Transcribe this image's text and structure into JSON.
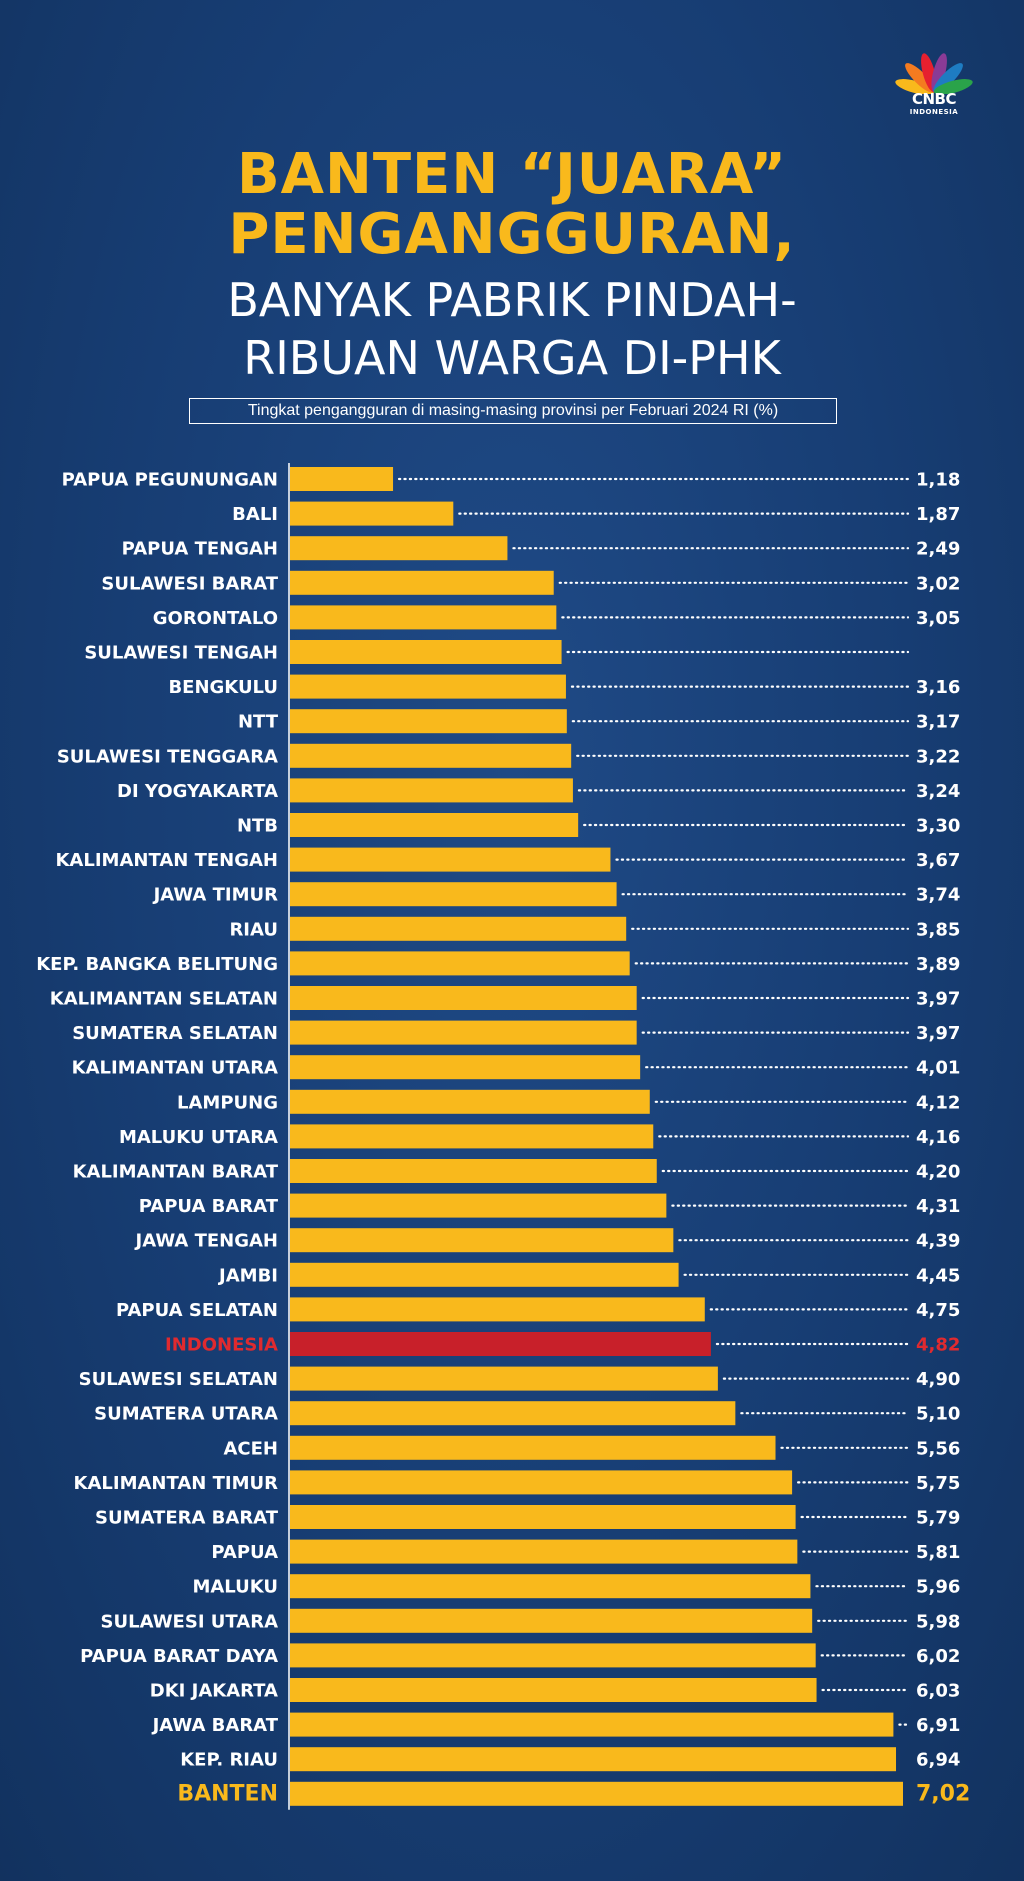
{
  "header": {
    "title_line1": "BANTEN “JUARA”",
    "title_line2": "PENGANGGURAN,",
    "subtitle_line1": "BANYAK PABRIK PINDAH-",
    "subtitle_line2": "RIBUAN WARGA DI-PHK",
    "caption": "Tingkat pengangguran di masing-masing provinsi per Februari 2024 RI (%)"
  },
  "logo": {
    "text": "CNBC",
    "subtext": "INDONESIA"
  },
  "colors": {
    "bar": "#f9b91c",
    "highlight_bar": "#c8202a",
    "highlight_text": "#e02a2f",
    "label": "#ffffff",
    "top_label": "#f9b91c",
    "dots": "#ffffff"
  },
  "chart_data": {
    "type": "bar",
    "orientation": "horizontal",
    "xlim": [
      0,
      7.02
    ],
    "categories": [
      "PAPUA PEGUNUNGAN",
      "BALI",
      "PAPUA TENGAH",
      "SULAWESI BARAT",
      "GORONTALO",
      "SULAWESI TENGAH",
      "BENGKULU",
      "NTT",
      "SULAWESI TENGGARA",
      "DI YOGYAKARTA",
      "NTB",
      "KALIMANTAN TENGAH",
      "JAWA TIMUR",
      "RIAU",
      "KEP. BANGKA BELITUNG",
      "KALIMANTAN SELATAN",
      "SUMATERA SELATAN",
      "KALIMANTAN UTARA",
      "LAMPUNG",
      "MALUKU UTARA",
      "KALIMANTAN BARAT",
      "PAPUA BARAT",
      "JAWA TENGAH",
      "JAMBI",
      "PAPUA SELATAN",
      "INDONESIA",
      "SULAWESI SELATAN",
      "SUMATERA UTARA",
      "ACEH",
      "KALIMANTAN TIMUR",
      "SUMATERA BARAT",
      "PAPUA",
      "MALUKU",
      "SULAWESI UTARA",
      "PAPUA BARAT DAYA",
      "DKI JAKARTA",
      "JAWA BARAT",
      "KEP. RIAU",
      "BANTEN"
    ],
    "values": [
      1.18,
      1.87,
      2.49,
      3.02,
      3.05,
      3.11,
      3.16,
      3.17,
      3.22,
      3.24,
      3.3,
      3.67,
      3.74,
      3.85,
      3.89,
      3.97,
      3.97,
      4.01,
      4.12,
      4.16,
      4.2,
      4.31,
      4.39,
      4.45,
      4.75,
      4.82,
      4.9,
      5.1,
      5.56,
      5.75,
      5.79,
      5.81,
      5.96,
      5.98,
      6.02,
      6.03,
      6.91,
      6.94,
      7.02
    ],
    "value_labels": [
      "1,18",
      "1,87",
      "2,49",
      "3,02",
      "3,05",
      "",
      "3,16",
      "3,17",
      "3,22",
      "3,24",
      "3,30",
      "3,67",
      "3,74",
      "3,85",
      "3,89",
      "3,97",
      "3,97",
      "4,01",
      "4,12",
      "4,16",
      "4,20",
      "4,31",
      "4,39",
      "4,45",
      "4,75",
      "4,82",
      "4,90",
      "5,10",
      "5,56",
      "5,75",
      "5,79",
      "5,81",
      "5,96",
      "5,98",
      "6,02",
      "6,03",
      "6,91",
      "6,94",
      "7,02"
    ],
    "highlight": "INDONESIA",
    "top": "BANTEN"
  }
}
